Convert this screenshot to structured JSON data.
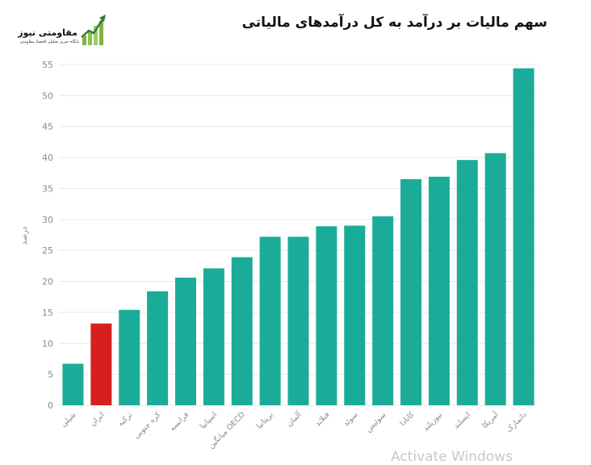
{
  "logo": {
    "name": "مقاومتی نیوز",
    "tagline": "پایگاه خبری تحلیلی اقتصاد مقاومتی"
  },
  "colors": {
    "bar": "#1aac98",
    "highlight": "#d62020",
    "grid": "#e8e8e8",
    "tick": "#8a8a8a"
  },
  "watermark": "Activate Windows",
  "chart_data": {
    "type": "bar",
    "title": "سهم مالیات بر درآمد به کل درآمدهای مالیاتی",
    "ylabel": "درصد",
    "xlabel": "",
    "ylim": [
      0,
      55
    ],
    "yticks": [
      0,
      5,
      10,
      15,
      20,
      25,
      30,
      35,
      40,
      45,
      50,
      55
    ],
    "grid": true,
    "categories": [
      "شیلی",
      "ایران",
      "ترکیه",
      "کره جنوبی",
      "فرانسه",
      "اسپانیا",
      "میانگین OECD",
      "بریتانیا",
      "آلمان",
      "فنلاند",
      "سوئد",
      "سوئیس",
      "کانادا",
      "نیوزیلند",
      "ایسلند",
      "آمریکا",
      "دانمارک"
    ],
    "values": [
      6.7,
      13.2,
      15.4,
      18.4,
      20.6,
      22.1,
      23.9,
      27.2,
      27.2,
      28.9,
      29.0,
      30.5,
      36.5,
      36.9,
      39.6,
      40.7,
      54.4
    ],
    "highlight_category": "ایران"
  }
}
